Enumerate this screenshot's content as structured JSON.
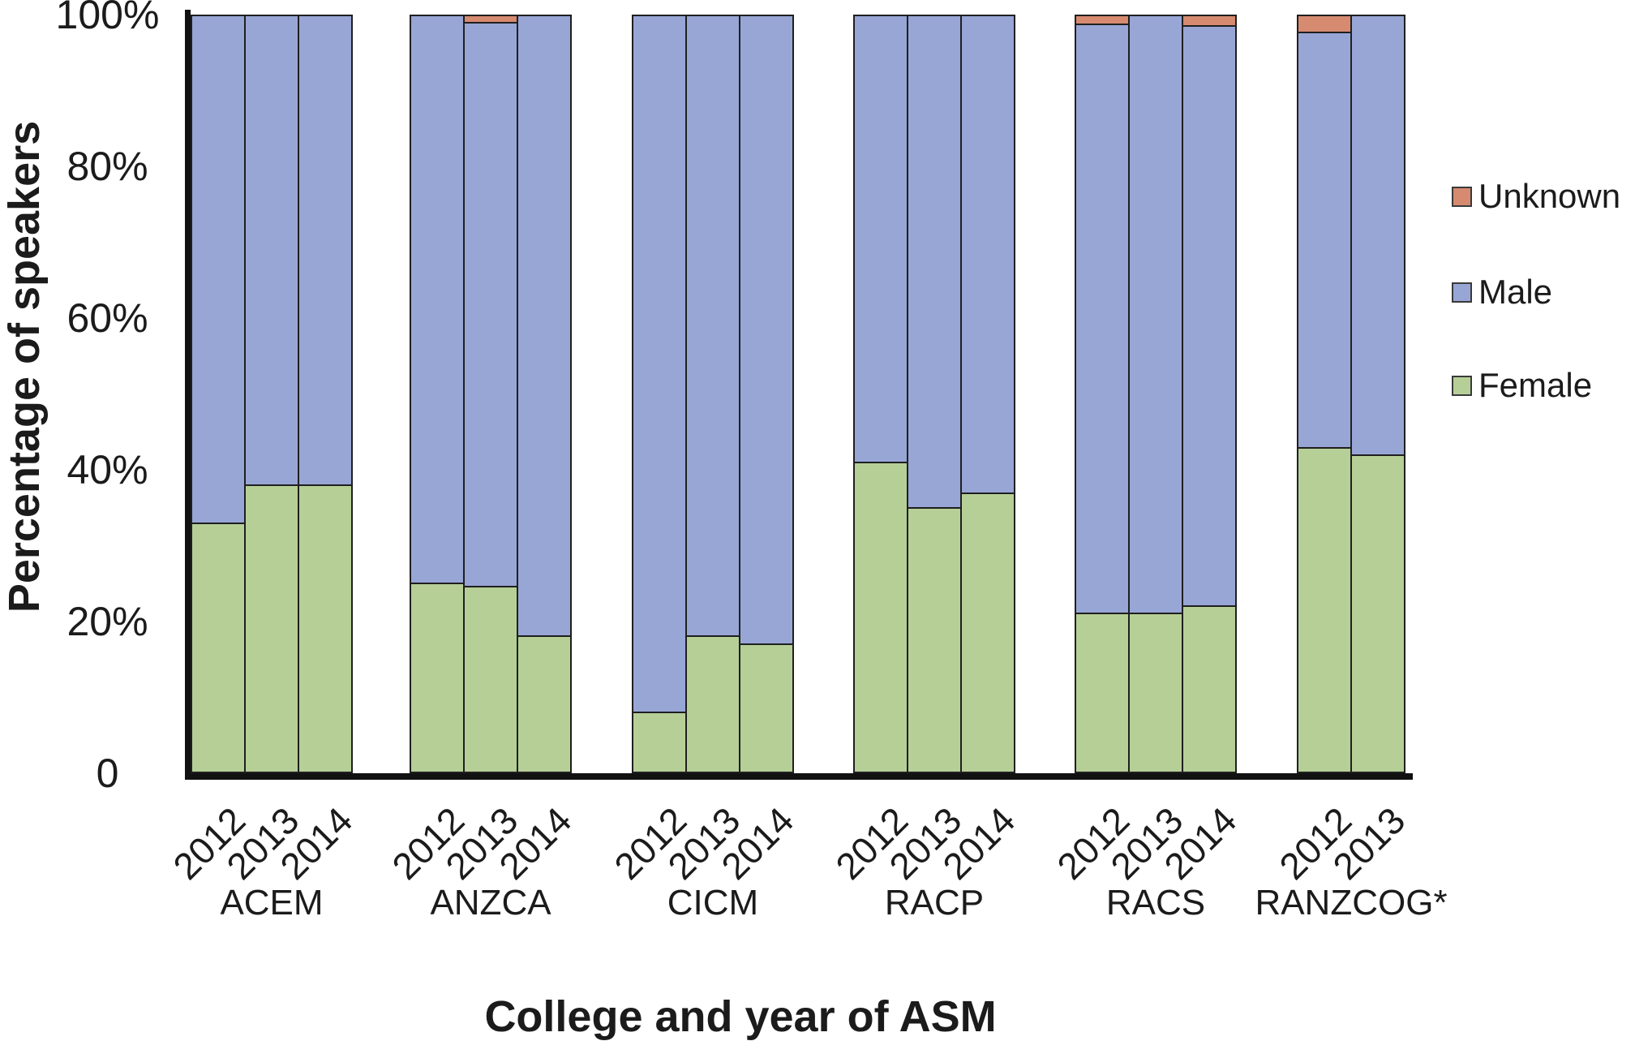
{
  "chart_data": {
    "type": "bar",
    "stacked": true,
    "title": "",
    "xlabel": "College and year of ASM",
    "ylabel": "Percentage of speakers",
    "ylim": [
      0,
      100
    ],
    "y_ticks": [
      "100%",
      "80%",
      "60%",
      "40%",
      "20%",
      "0"
    ],
    "y_tick_values": [
      100,
      80,
      60,
      40,
      20,
      0
    ],
    "grid": false,
    "legend_position": "right",
    "legend": [
      {
        "label": "Unknown",
        "color": "#D68A70"
      },
      {
        "label": "Male",
        "color": "#98A6D6"
      },
      {
        "label": "Female",
        "color": "#B6CF97"
      }
    ],
    "series_order_bottom_to_top": [
      "Female",
      "Male",
      "Unknown"
    ],
    "groups": [
      {
        "college": "ACEM",
        "years": [
          "2012",
          "2013",
          "2014"
        ],
        "female": [
          33,
          38,
          38
        ],
        "male": [
          67,
          62,
          62
        ],
        "unknown": [
          0,
          0,
          0
        ]
      },
      {
        "college": "ANZCA",
        "years": [
          "2012",
          "2013",
          "2014"
        ],
        "female": [
          25,
          24.6,
          18
        ],
        "male": [
          75,
          74.6,
          82
        ],
        "unknown": [
          0,
          0.8,
          0
        ]
      },
      {
        "college": "CICM",
        "years": [
          "2012",
          "2013",
          "2014"
        ],
        "female": [
          8,
          18,
          17
        ],
        "male": [
          92,
          82,
          83
        ],
        "unknown": [
          0,
          0,
          0
        ]
      },
      {
        "college": "RACP",
        "years": [
          "2012",
          "2013",
          "2014"
        ],
        "female": [
          41,
          35,
          37
        ],
        "male": [
          59,
          65,
          63
        ],
        "unknown": [
          0,
          0,
          0
        ]
      },
      {
        "college": "RACS",
        "years": [
          "2012",
          "2013",
          "2014"
        ],
        "female": [
          21,
          21,
          22
        ],
        "male": [
          78,
          79,
          76.8
        ],
        "unknown": [
          1,
          0,
          1.2
        ]
      },
      {
        "college": "RANZCOG*",
        "years": [
          "2012",
          "2013"
        ],
        "female": [
          43,
          42
        ],
        "male": [
          55,
          58
        ],
        "unknown": [
          2,
          0
        ]
      }
    ]
  }
}
